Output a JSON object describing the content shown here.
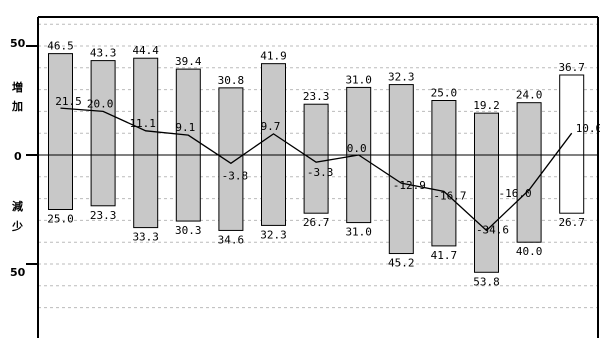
{
  "chart_data": {
    "type": "bar",
    "ylim": [
      -70,
      60
    ],
    "grid": true,
    "y_tick_labels": [
      "50",
      "0",
      "50"
    ],
    "y_side_labels": {
      "increase": [
        "増",
        "加"
      ],
      "decrease": [
        "減",
        "少"
      ]
    },
    "series": [
      {
        "values": [
          46.5,
          43.3,
          44.4,
          39.4,
          30.8,
          41.9,
          23.3,
          31.0,
          32.3,
          25.0,
          19.2,
          24.0,
          36.7
        ]
      },
      {
        "values": [
          -25.0,
          -23.3,
          -33.3,
          -30.3,
          -34.6,
          -32.3,
          -26.7,
          -31.0,
          -45.2,
          -41.7,
          -53.8,
          -40.0,
          -26.7
        ]
      },
      {
        "values": [
          21.5,
          20.0,
          11.1,
          9.1,
          -3.8,
          9.7,
          -3.3,
          0.0,
          -12.9,
          -16.7,
          -34.6,
          -16.0,
          10.0
        ]
      }
    ],
    "value_labels": {
      "increase": [
        "46.5",
        "43.3",
        "44.4",
        "39.4",
        "30.8",
        "41.9",
        "23.3",
        "31.0",
        "32.3",
        "25.0",
        "19.2",
        "24.0",
        "36.7"
      ],
      "decrease": [
        "25.0",
        "23.3",
        "33.3",
        "30.3",
        "34.6",
        "32.3",
        "26.7",
        "31.0",
        "45.2",
        "41.7",
        "53.8",
        "40.0",
        "26.7"
      ],
      "net": [
        "21.5",
        "20.0",
        "11.1",
        "9.1",
        "-3.8",
        "9.7",
        "-3.3",
        "0.0",
        "-12.9",
        "-16.7",
        "-34.6",
        "-16.0",
        "10.0"
      ]
    },
    "colors": {
      "bar_fill": "#c8c8c8",
      "last_bar_fill": "#ffffff",
      "outline": "#000000",
      "grid": "#bbbbbb",
      "line": "#000000"
    }
  }
}
